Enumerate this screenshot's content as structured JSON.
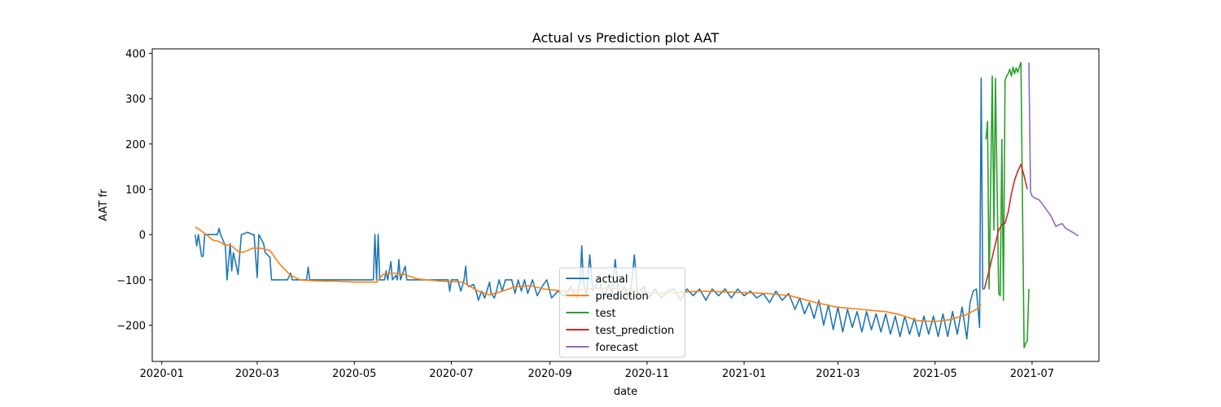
{
  "chart_data": {
    "type": "line",
    "title": "Actual vs Prediction plot AAT",
    "xlabel": "date",
    "ylabel": "AAT fr",
    "x_tick_labels": [
      "2020-01",
      "2020-03",
      "2020-05",
      "2020-07",
      "2020-09",
      "2020-11",
      "2021-01",
      "2021-03",
      "2021-05",
      "2021-07"
    ],
    "x_ticks": [
      "2020-01-01",
      "2020-03-01",
      "2020-05-01",
      "2020-07-01",
      "2020-09-01",
      "2020-11-01",
      "2021-01-01",
      "2021-03-01",
      "2021-05-01",
      "2021-07-01"
    ],
    "y_ticks": [
      -200,
      -100,
      0,
      100,
      200,
      300,
      400
    ],
    "xlim": [
      "2019-12-26",
      "2021-08-12"
    ],
    "ylim": [
      -280,
      410
    ],
    "grid": false,
    "legend_position": "lower center",
    "series": [
      {
        "name": "actual",
        "color": "#1f77b4",
        "points": [
          [
            "2020-01-22",
            0
          ],
          [
            "2020-01-23",
            -25
          ],
          [
            "2020-01-24",
            0
          ],
          [
            "2020-01-26",
            -48
          ],
          [
            "2020-01-27",
            -48
          ],
          [
            "2020-01-28",
            0
          ],
          [
            "2020-02-05",
            0
          ],
          [
            "2020-02-06",
            14
          ],
          [
            "2020-02-07",
            0
          ],
          [
            "2020-02-10",
            -25
          ],
          [
            "2020-02-11",
            -100
          ],
          [
            "2020-02-13",
            -20
          ],
          [
            "2020-02-14",
            -80
          ],
          [
            "2020-02-15",
            -40
          ],
          [
            "2020-02-18",
            -88
          ],
          [
            "2020-02-20",
            0
          ],
          [
            "2020-02-24",
            5
          ],
          [
            "2020-02-27",
            0
          ],
          [
            "2020-02-28",
            0
          ],
          [
            "2020-03-01",
            -95
          ],
          [
            "2020-03-02",
            0
          ],
          [
            "2020-03-05",
            -20
          ],
          [
            "2020-03-06",
            -40
          ],
          [
            "2020-03-09",
            -50
          ],
          [
            "2020-03-10",
            -100
          ],
          [
            "2020-03-20",
            -100
          ],
          [
            "2020-03-22",
            -85
          ],
          [
            "2020-03-23",
            -100
          ],
          [
            "2020-04-01",
            -100
          ],
          [
            "2020-04-02",
            -72
          ],
          [
            "2020-04-03",
            -100
          ],
          [
            "2020-05-13",
            -100
          ],
          [
            "2020-05-14",
            0
          ],
          [
            "2020-05-15",
            -100
          ],
          [
            "2020-05-16",
            0
          ],
          [
            "2020-05-17",
            -100
          ],
          [
            "2020-05-20",
            -100
          ],
          [
            "2020-05-21",
            -80
          ],
          [
            "2020-05-22",
            -100
          ],
          [
            "2020-05-24",
            -60
          ],
          [
            "2020-05-25",
            -100
          ],
          [
            "2020-05-27",
            -90
          ],
          [
            "2020-05-28",
            -100
          ],
          [
            "2020-05-29",
            -55
          ],
          [
            "2020-05-30",
            -100
          ],
          [
            "2020-06-02",
            -70
          ],
          [
            "2020-06-03",
            -100
          ],
          [
            "2020-06-29",
            -100
          ],
          [
            "2020-06-30",
            -125
          ],
          [
            "2020-07-01",
            -100
          ],
          [
            "2020-07-05",
            -100
          ],
          [
            "2020-07-07",
            -125
          ],
          [
            "2020-07-09",
            -100
          ],
          [
            "2020-07-10",
            -70
          ],
          [
            "2020-07-11",
            -110
          ],
          [
            "2020-07-12",
            -115
          ],
          [
            "2020-07-15",
            -110
          ],
          [
            "2020-07-17",
            -130
          ],
          [
            "2020-07-18",
            -145
          ],
          [
            "2020-07-20",
            -125
          ],
          [
            "2020-07-22",
            -140
          ],
          [
            "2020-07-25",
            -105
          ],
          [
            "2020-07-26",
            -130
          ],
          [
            "2020-07-27",
            -135
          ],
          [
            "2020-07-28",
            -140
          ],
          [
            "2020-07-29",
            -130
          ],
          [
            "2020-07-31",
            -100
          ],
          [
            "2020-08-02",
            -125
          ],
          [
            "2020-08-04",
            -100
          ],
          [
            "2020-08-08",
            -100
          ],
          [
            "2020-08-10",
            -130
          ],
          [
            "2020-08-12",
            -100
          ],
          [
            "2020-08-14",
            -125
          ],
          [
            "2020-08-16",
            -100
          ],
          [
            "2020-08-18",
            -130
          ],
          [
            "2020-08-21",
            -100
          ],
          [
            "2020-08-24",
            -135
          ],
          [
            "2020-08-27",
            -115
          ],
          [
            "2020-08-30",
            -100
          ],
          [
            "2020-09-02",
            -140
          ],
          [
            "2020-09-06",
            -125
          ],
          [
            "2020-09-10",
            -135
          ],
          [
            "2020-09-14",
            -115
          ],
          [
            "2020-09-18",
            -140
          ],
          [
            "2020-09-20",
            -100
          ],
          [
            "2020-09-21",
            -25
          ],
          [
            "2020-09-22",
            -105
          ],
          [
            "2020-09-24",
            -135
          ],
          [
            "2020-09-26",
            -45
          ],
          [
            "2020-09-28",
            -125
          ],
          [
            "2020-10-02",
            -100
          ],
          [
            "2020-10-05",
            -140
          ],
          [
            "2020-10-08",
            -110
          ],
          [
            "2020-10-10",
            -130
          ],
          [
            "2020-10-12",
            -55
          ],
          [
            "2020-10-14",
            -130
          ],
          [
            "2020-10-18",
            -115
          ],
          [
            "2020-10-20",
            -140
          ],
          [
            "2020-10-22",
            -120
          ],
          [
            "2020-10-24",
            -45
          ],
          [
            "2020-10-26",
            -130
          ],
          [
            "2020-10-30",
            -115
          ],
          [
            "2020-11-02",
            -140
          ],
          [
            "2020-11-06",
            -120
          ],
          [
            "2020-11-10",
            -140
          ],
          [
            "2020-11-14",
            -125
          ],
          [
            "2020-11-18",
            -120
          ],
          [
            "2020-11-22",
            -145
          ],
          [
            "2020-11-26",
            -120
          ],
          [
            "2020-11-30",
            -135
          ],
          [
            "2020-12-04",
            -120
          ],
          [
            "2020-12-08",
            -145
          ],
          [
            "2020-12-12",
            -120
          ],
          [
            "2020-12-16",
            -135
          ],
          [
            "2020-12-20",
            -120
          ],
          [
            "2020-12-24",
            -140
          ],
          [
            "2020-12-28",
            -120
          ],
          [
            "2021-01-01",
            -135
          ],
          [
            "2021-01-05",
            -125
          ],
          [
            "2021-01-09",
            -140
          ],
          [
            "2021-01-13",
            -130
          ],
          [
            "2021-01-17",
            -150
          ],
          [
            "2021-01-21",
            -125
          ],
          [
            "2021-01-25",
            -145
          ],
          [
            "2021-01-29",
            -130
          ],
          [
            "2021-02-02",
            -165
          ],
          [
            "2021-02-05",
            -140
          ],
          [
            "2021-02-08",
            -175
          ],
          [
            "2021-02-11",
            -150
          ],
          [
            "2021-02-14",
            -185
          ],
          [
            "2021-02-17",
            -145
          ],
          [
            "2021-02-20",
            -200
          ],
          [
            "2021-02-23",
            -155
          ],
          [
            "2021-02-26",
            -210
          ],
          [
            "2021-03-01",
            -160
          ],
          [
            "2021-03-04",
            -215
          ],
          [
            "2021-03-07",
            -165
          ],
          [
            "2021-03-10",
            -205
          ],
          [
            "2021-03-13",
            -170
          ],
          [
            "2021-03-16",
            -215
          ],
          [
            "2021-03-19",
            -170
          ],
          [
            "2021-03-22",
            -210
          ],
          [
            "2021-03-25",
            -175
          ],
          [
            "2021-03-28",
            -215
          ],
          [
            "2021-03-31",
            -175
          ],
          [
            "2021-04-03",
            -220
          ],
          [
            "2021-04-06",
            -180
          ],
          [
            "2021-04-09",
            -225
          ],
          [
            "2021-04-12",
            -180
          ],
          [
            "2021-04-15",
            -220
          ],
          [
            "2021-04-18",
            -185
          ],
          [
            "2021-04-21",
            -225
          ],
          [
            "2021-04-24",
            -180
          ],
          [
            "2021-04-27",
            -220
          ],
          [
            "2021-04-30",
            -180
          ],
          [
            "2021-05-03",
            -225
          ],
          [
            "2021-05-06",
            -175
          ],
          [
            "2021-05-09",
            -225
          ],
          [
            "2021-05-12",
            -170
          ],
          [
            "2021-05-15",
            -220
          ],
          [
            "2021-05-18",
            -160
          ],
          [
            "2021-05-21",
            -230
          ],
          [
            "2021-05-23",
            -150
          ],
          [
            "2021-05-25",
            -125
          ],
          [
            "2021-05-27",
            -120
          ],
          [
            "2021-05-29",
            -205
          ],
          [
            "2021-05-30",
            345
          ],
          [
            "2021-05-31",
            -120
          ],
          [
            "2021-06-01",
            -120
          ]
        ]
      },
      {
        "name": "prediction",
        "color": "#ff7f0e",
        "points": [
          [
            "2020-01-22",
            17
          ],
          [
            "2020-01-25",
            10
          ],
          [
            "2020-01-29",
            0
          ],
          [
            "2020-02-02",
            -12
          ],
          [
            "2020-02-06",
            -15
          ],
          [
            "2020-02-09",
            -22
          ],
          [
            "2020-02-14",
            -25
          ],
          [
            "2020-02-19",
            -40
          ],
          [
            "2020-02-22",
            -38
          ],
          [
            "2020-02-27",
            -30
          ],
          [
            "2020-03-03",
            -30
          ],
          [
            "2020-03-09",
            -35
          ],
          [
            "2020-03-15",
            -65
          ],
          [
            "2020-03-22",
            -90
          ],
          [
            "2020-03-28",
            -100
          ],
          [
            "2020-04-05",
            -102
          ],
          [
            "2020-04-20",
            -103
          ],
          [
            "2020-05-01",
            -105
          ],
          [
            "2020-05-15",
            -105
          ],
          [
            "2020-05-19",
            -88
          ],
          [
            "2020-05-26",
            -85
          ],
          [
            "2020-06-01",
            -88
          ],
          [
            "2020-06-10",
            -98
          ],
          [
            "2020-06-25",
            -103
          ],
          [
            "2020-07-08",
            -105
          ],
          [
            "2020-07-18",
            -125
          ],
          [
            "2020-07-25",
            -133
          ],
          [
            "2020-08-02",
            -125
          ],
          [
            "2020-08-10",
            -115
          ],
          [
            "2020-08-20",
            -113
          ],
          [
            "2020-08-28",
            -120
          ],
          [
            "2020-09-10",
            -125
          ],
          [
            "2020-09-25",
            -120
          ],
          [
            "2020-10-08",
            -118
          ],
          [
            "2020-10-20",
            -122
          ],
          [
            "2020-11-05",
            -130
          ],
          [
            "2020-11-20",
            -128
          ],
          [
            "2020-12-05",
            -125
          ],
          [
            "2020-12-25",
            -127
          ],
          [
            "2021-01-15",
            -130
          ],
          [
            "2021-01-30",
            -135
          ],
          [
            "2021-02-15",
            -150
          ],
          [
            "2021-02-28",
            -160
          ],
          [
            "2021-03-15",
            -165
          ],
          [
            "2021-03-31",
            -170
          ],
          [
            "2021-04-10",
            -178
          ],
          [
            "2021-04-20",
            -190
          ],
          [
            "2021-05-01",
            -192
          ],
          [
            "2021-05-10",
            -188
          ],
          [
            "2021-05-20",
            -178
          ],
          [
            "2021-05-27",
            -165
          ],
          [
            "2021-05-30",
            -155
          ]
        ]
      },
      {
        "name": "test",
        "color": "#2ca02c",
        "points": [
          [
            "2021-06-02",
            210
          ],
          [
            "2021-06-03",
            250
          ],
          [
            "2021-06-04",
            -120
          ],
          [
            "2021-06-06",
            350
          ],
          [
            "2021-06-07",
            10
          ],
          [
            "2021-06-08",
            345
          ],
          [
            "2021-06-10",
            -130
          ],
          [
            "2021-06-11",
            -135
          ],
          [
            "2021-06-12",
            210
          ],
          [
            "2021-06-13",
            -145
          ],
          [
            "2021-06-14",
            340
          ],
          [
            "2021-06-15",
            350
          ],
          [
            "2021-06-16",
            355
          ],
          [
            "2021-06-17",
            365
          ],
          [
            "2021-06-18",
            350
          ],
          [
            "2021-06-19",
            370
          ],
          [
            "2021-06-20",
            355
          ],
          [
            "2021-06-21",
            368
          ],
          [
            "2021-06-22",
            358
          ],
          [
            "2021-06-23",
            370
          ],
          [
            "2021-06-24",
            380
          ],
          [
            "2021-06-26",
            -250
          ],
          [
            "2021-06-27",
            -240
          ],
          [
            "2021-06-28",
            -235
          ],
          [
            "2021-06-29",
            -120
          ]
        ]
      },
      {
        "name": "test_prediction",
        "color": "#d62728",
        "points": [
          [
            "2021-06-01",
            -120
          ],
          [
            "2021-06-04",
            -80
          ],
          [
            "2021-06-06",
            -50
          ],
          [
            "2021-06-08",
            -20
          ],
          [
            "2021-06-10",
            10
          ],
          [
            "2021-06-12",
            22
          ],
          [
            "2021-06-14",
            25
          ],
          [
            "2021-06-16",
            50
          ],
          [
            "2021-06-18",
            90
          ],
          [
            "2021-06-20",
            120
          ],
          [
            "2021-06-22",
            140
          ],
          [
            "2021-06-24",
            155
          ],
          [
            "2021-06-26",
            130
          ],
          [
            "2021-06-28",
            100
          ]
        ]
      },
      {
        "name": "forecast",
        "color": "#9467bd",
        "points": [
          [
            "2021-06-29",
            380
          ],
          [
            "2021-06-30",
            95
          ],
          [
            "2021-07-01",
            85
          ],
          [
            "2021-07-03",
            80
          ],
          [
            "2021-07-05",
            78
          ],
          [
            "2021-07-07",
            70
          ],
          [
            "2021-07-10",
            55
          ],
          [
            "2021-07-13",
            40
          ],
          [
            "2021-07-16",
            18
          ],
          [
            "2021-07-18",
            22
          ],
          [
            "2021-07-20",
            24
          ],
          [
            "2021-07-22",
            14
          ],
          [
            "2021-07-25",
            8
          ],
          [
            "2021-07-28",
            2
          ],
          [
            "2021-07-30",
            -3
          ]
        ]
      }
    ]
  }
}
